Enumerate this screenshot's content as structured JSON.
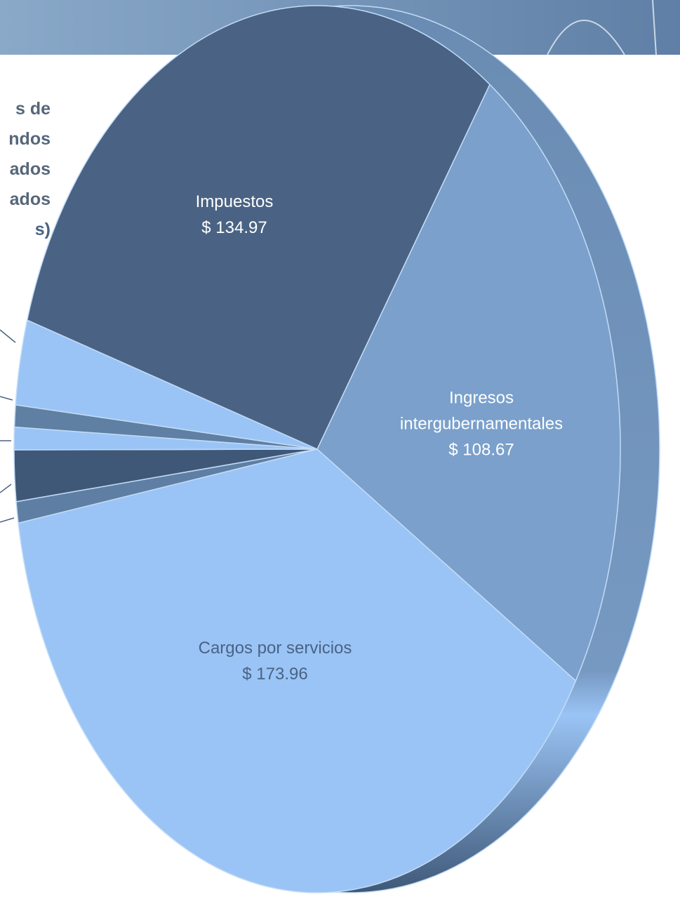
{
  "chart_data": {
    "type": "pie",
    "title_lines": [
      "s de",
      "ndos",
      "ados",
      "ados",
      "s)"
    ],
    "categories": [
      "Ingresos intergubernamen­tales",
      "Cargos por servicios",
      null,
      null,
      null,
      null,
      null,
      "Impuestos"
    ],
    "values": [
      108.67,
      173.96,
      3.5,
      8.4,
      3.7,
      3.6,
      14.0,
      134.97
    ],
    "value_labels": [
      "$ 108.67",
      "$ 173.96",
      null,
      null,
      null,
      null,
      null,
      "$ 134.97"
    ],
    "colors": [
      "#7aa0cb",
      "#9ac4f5",
      "#5e7fa3",
      "#3f5877",
      "#9ac4f5",
      "#5f80a3",
      "#9ac4f5",
      "#4a6384"
    ],
    "label_colors": [
      "#ffffff",
      "#4a6384",
      null,
      null,
      null,
      null,
      null,
      "#ffffff"
    ]
  }
}
